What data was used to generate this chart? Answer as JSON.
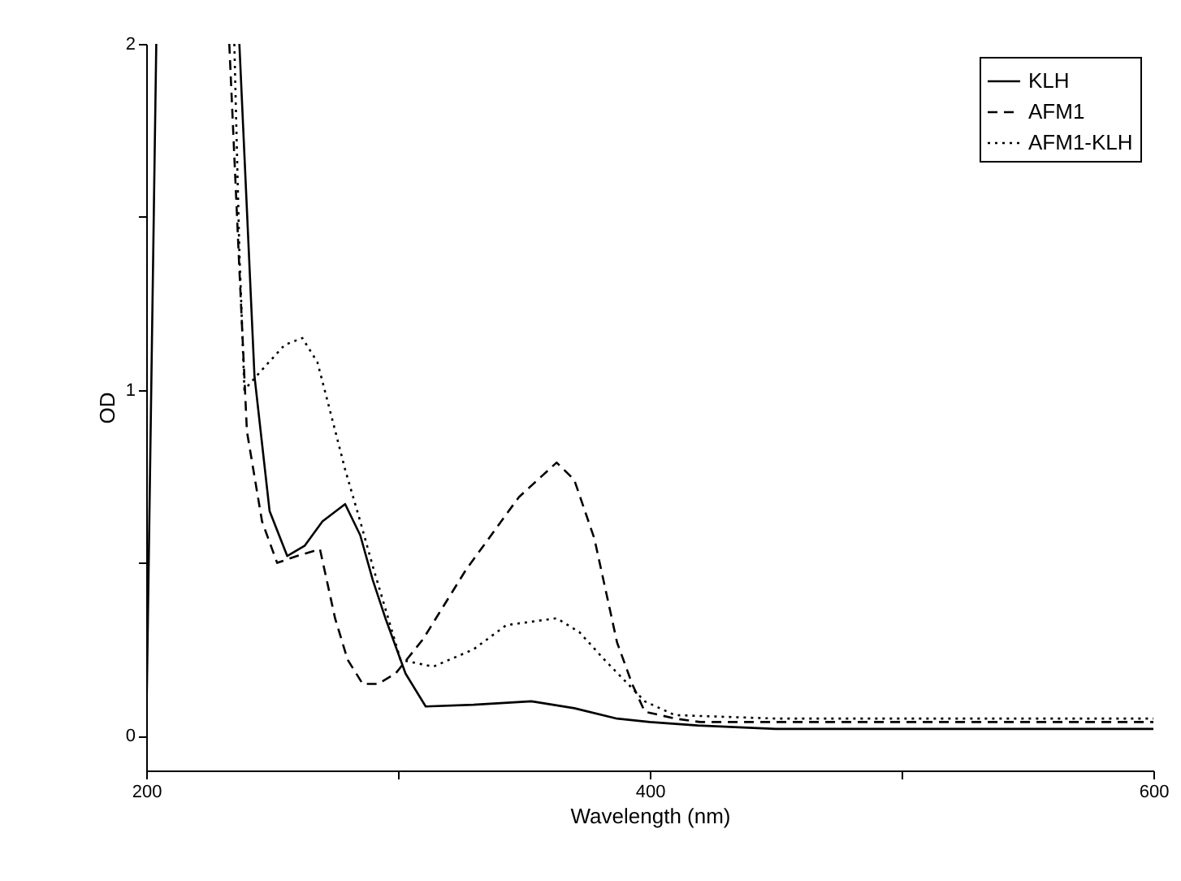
{
  "chart_data": {
    "type": "line",
    "xlabel": "Wavelength (nm)",
    "ylabel": "OD",
    "xlim": [
      200,
      600
    ],
    "ylim": [
      -0.1,
      2
    ],
    "xticks": [
      200,
      {
        "value": 300,
        "label": null
      },
      400,
      {
        "value": 500,
        "label": null
      },
      600
    ],
    "yticks": [
      0,
      {
        "value": 0.5,
        "label": null
      },
      1,
      {
        "value": 1.5,
        "label": null
      },
      2
    ],
    "grid": false,
    "legend": "top right",
    "marker": "none",
    "series": [
      {
        "name": "KLH",
        "color": "#000000",
        "line_style": "solid",
        "x": [
          200,
          204,
          220,
          237,
          243,
          249,
          256,
          263,
          270,
          279,
          285,
          290,
          295,
          303,
          311,
          330,
          353,
          370,
          387,
          400,
          419,
          450,
          500,
          600
        ],
        "values": [
          0,
          2,
          null,
          2,
          1.04,
          0.65,
          0.52,
          0.55,
          0.62,
          0.67,
          0.58,
          0.45,
          0.34,
          0.18,
          0.085,
          0.09,
          0.1,
          0.08,
          0.05,
          0.04,
          0.03,
          0.02,
          0.02,
          0.02
        ]
      },
      {
        "name": "AFM1",
        "color": "#000000",
        "line_style": "dashed",
        "x": [
          233,
          237,
          240,
          246,
          252,
          260,
          269,
          275,
          280,
          286,
          292,
          299,
          310,
          327,
          348,
          363,
          370,
          378,
          387,
          393,
          398,
          410,
          420,
          500,
          600
        ],
        "values": [
          2,
          1.35,
          0.88,
          0.62,
          0.5,
          0.52,
          0.54,
          0.34,
          0.22,
          0.15,
          0.15,
          0.18,
          0.28,
          0.48,
          0.69,
          0.79,
          0.74,
          0.57,
          0.27,
          0.15,
          0.07,
          0.05,
          0.04,
          0.04,
          0.04
        ]
      },
      {
        "name": "AFM1-KLH",
        "color": "#000000",
        "line_style": "dotted",
        "x": [
          235,
          237,
          239,
          245,
          255,
          262,
          268,
          273,
          279,
          285,
          290,
          301,
          314,
          330,
          343,
          363,
          372,
          382,
          390,
          398,
          410,
          450,
          600
        ],
        "values": [
          2,
          1.4,
          1.0,
          1.05,
          1.13,
          1.15,
          1.08,
          0.94,
          0.77,
          0.62,
          0.49,
          0.22,
          0.2,
          0.25,
          0.32,
          0.34,
          0.3,
          0.22,
          0.16,
          0.1,
          0.06,
          0.05,
          0.05
        ]
      }
    ]
  }
}
